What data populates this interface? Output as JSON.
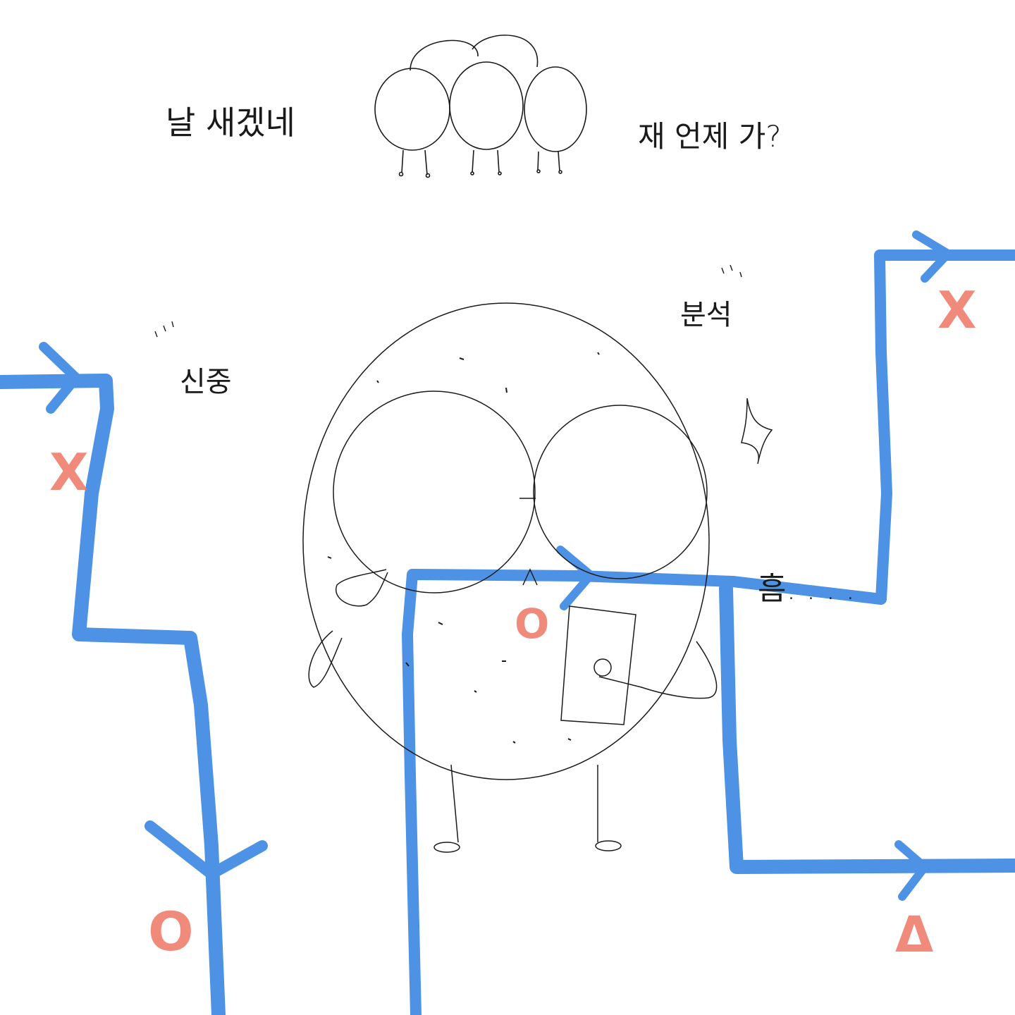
{
  "texts": {
    "top_left": "날 새겠네",
    "top_right": "재 언제 가?",
    "label_left": "신중",
    "label_right": "분석",
    "hmm": "흠. . . ."
  },
  "marks": {
    "left_top": "X",
    "left_bottom": "O",
    "center": "O",
    "right_top": "X",
    "right_bottom": "Δ"
  },
  "colors": {
    "path_blue": "#2f7fe0",
    "mark_red": "#ee7766",
    "ink": "#1a1a1a"
  }
}
